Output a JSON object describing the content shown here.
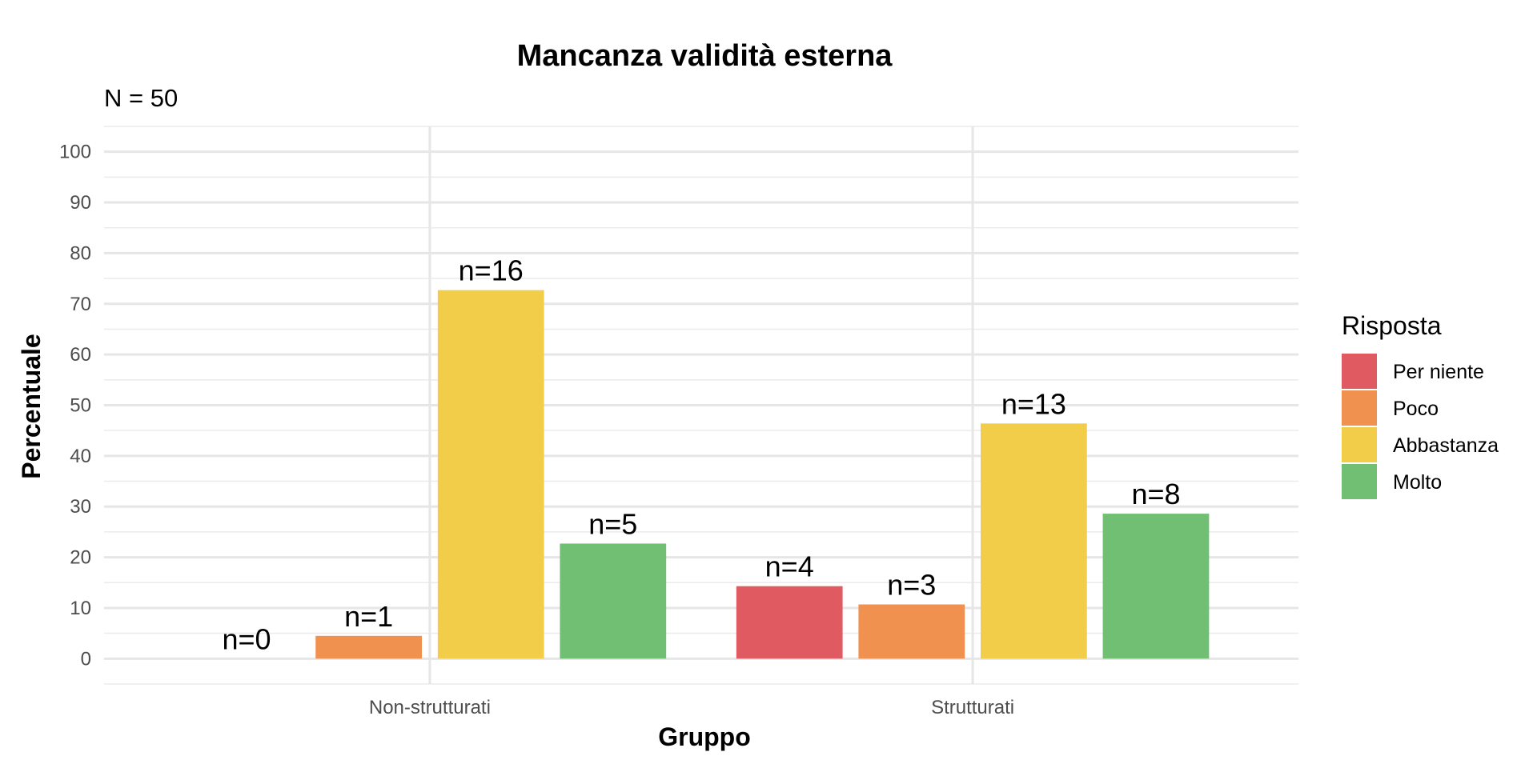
{
  "chart_data": {
    "type": "bar",
    "title": "Mancanza validità esterna",
    "subtitle": "N = 50",
    "xlabel": "Gruppo",
    "ylabel": "Percentuale",
    "ylim": [
      -5,
      105
    ],
    "yticks": [
      0,
      10,
      20,
      30,
      40,
      50,
      60,
      70,
      80,
      90,
      100
    ],
    "grid": true,
    "legend_position": "right",
    "legend_title": "Risposta",
    "categories": [
      "Non-strutturati",
      "Strutturati"
    ],
    "series": [
      {
        "name": "Per niente",
        "color": "#DF5B61",
        "values": [
          0,
          14.3
        ],
        "labels": [
          "n=0",
          "n=4"
        ]
      },
      {
        "name": "Poco",
        "color": "#F09150",
        "values": [
          4.5,
          10.7
        ],
        "labels": [
          "n=1",
          "n=3"
        ]
      },
      {
        "name": "Abbastanza",
        "color": "#F2CD4A",
        "values": [
          72.7,
          46.4
        ],
        "labels": [
          "n=16",
          "n=13"
        ]
      },
      {
        "name": "Molto",
        "color": "#70BF73",
        "values": [
          22.7,
          28.6
        ],
        "labels": [
          "n=5",
          "n=8"
        ]
      }
    ]
  }
}
